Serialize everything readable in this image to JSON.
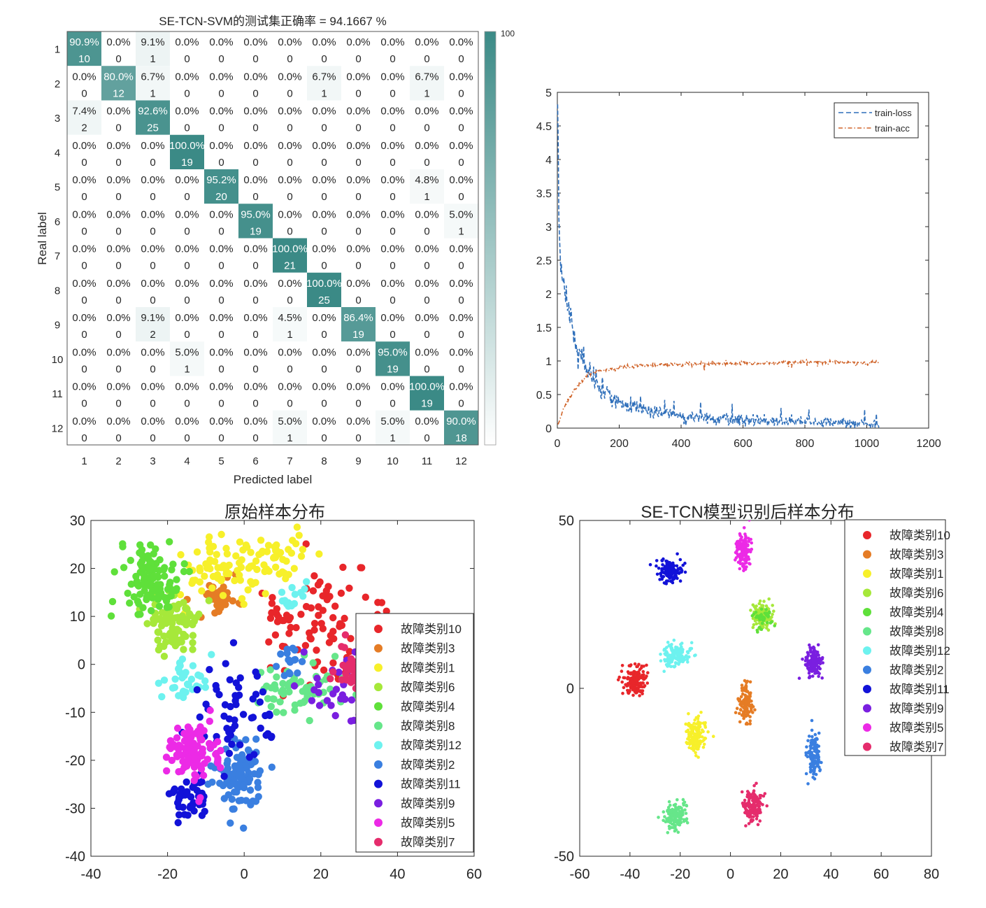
{
  "colors": {
    "cm_cell": "#3b8a86",
    "loss": "#2f6fba",
    "acc": "#d0642a",
    "classes": {
      "故障类别10": "#e8262a",
      "故障类别3": "#e57c25",
      "故障类别1": "#f7f02a",
      "故障类别6": "#a6e83a",
      "故障类别4": "#5fe03a",
      "故障类别8": "#66e68a",
      "故障类别12": "#6df2ef",
      "故障类别2": "#3a7fe0",
      "故障类别11": "#1212d8",
      "故障类别9": "#7a1fe0",
      "故障类别5": "#ec2ae6",
      "故障类别7": "#e52c6c"
    }
  },
  "chart_data": [
    {
      "type": "heatmap",
      "title": "SE-TCN-SVM的测试集正确率 = 94.1667 %",
      "xlabel": "Predicted label",
      "ylabel": "Real label",
      "labels": [
        "1",
        "2",
        "3",
        "4",
        "5",
        "6",
        "7",
        "8",
        "9",
        "10",
        "11",
        "12"
      ],
      "colorbar_label": "100",
      "counts": [
        [
          10,
          0,
          1,
          0,
          0,
          0,
          0,
          0,
          0,
          0,
          0,
          0
        ],
        [
          0,
          12,
          1,
          0,
          0,
          0,
          0,
          1,
          0,
          0,
          1,
          0
        ],
        [
          2,
          0,
          25,
          0,
          0,
          0,
          0,
          0,
          0,
          0,
          0,
          0
        ],
        [
          0,
          0,
          0,
          19,
          0,
          0,
          0,
          0,
          0,
          0,
          0,
          0
        ],
        [
          0,
          0,
          0,
          0,
          20,
          0,
          0,
          0,
          0,
          0,
          1,
          0
        ],
        [
          0,
          0,
          0,
          0,
          0,
          19,
          0,
          0,
          0,
          0,
          0,
          1
        ],
        [
          0,
          0,
          0,
          0,
          0,
          0,
          21,
          0,
          0,
          0,
          0,
          0
        ],
        [
          0,
          0,
          0,
          0,
          0,
          0,
          0,
          25,
          0,
          0,
          0,
          0
        ],
        [
          0,
          0,
          2,
          0,
          0,
          0,
          1,
          0,
          19,
          0,
          0,
          0
        ],
        [
          0,
          0,
          0,
          1,
          0,
          0,
          0,
          0,
          0,
          19,
          0,
          0
        ],
        [
          0,
          0,
          0,
          0,
          0,
          0,
          0,
          0,
          0,
          0,
          19,
          0
        ],
        [
          0,
          0,
          0,
          0,
          0,
          0,
          1,
          0,
          0,
          1,
          0,
          18
        ]
      ],
      "percent": [
        [
          "90.9%",
          "0.0%",
          "9.1%",
          "0.0%",
          "0.0%",
          "0.0%",
          "0.0%",
          "0.0%",
          "0.0%",
          "0.0%",
          "0.0%",
          "0.0%"
        ],
        [
          "0.0%",
          "80.0%",
          "6.7%",
          "0.0%",
          "0.0%",
          "0.0%",
          "0.0%",
          "6.7%",
          "0.0%",
          "0.0%",
          "6.7%",
          "0.0%"
        ],
        [
          "7.4%",
          "0.0%",
          "92.6%",
          "0.0%",
          "0.0%",
          "0.0%",
          "0.0%",
          "0.0%",
          "0.0%",
          "0.0%",
          "0.0%",
          "0.0%"
        ],
        [
          "0.0%",
          "0.0%",
          "0.0%",
          "100.0%",
          "0.0%",
          "0.0%",
          "0.0%",
          "0.0%",
          "0.0%",
          "0.0%",
          "0.0%",
          "0.0%"
        ],
        [
          "0.0%",
          "0.0%",
          "0.0%",
          "0.0%",
          "95.2%",
          "0.0%",
          "0.0%",
          "0.0%",
          "0.0%",
          "0.0%",
          "4.8%",
          "0.0%"
        ],
        [
          "0.0%",
          "0.0%",
          "0.0%",
          "0.0%",
          "0.0%",
          "95.0%",
          "0.0%",
          "0.0%",
          "0.0%",
          "0.0%",
          "0.0%",
          "5.0%"
        ],
        [
          "0.0%",
          "0.0%",
          "0.0%",
          "0.0%",
          "0.0%",
          "0.0%",
          "100.0%",
          "0.0%",
          "0.0%",
          "0.0%",
          "0.0%",
          "0.0%"
        ],
        [
          "0.0%",
          "0.0%",
          "0.0%",
          "0.0%",
          "0.0%",
          "0.0%",
          "0.0%",
          "100.0%",
          "0.0%",
          "0.0%",
          "0.0%",
          "0.0%"
        ],
        [
          "0.0%",
          "0.0%",
          "9.1%",
          "0.0%",
          "0.0%",
          "0.0%",
          "4.5%",
          "0.0%",
          "86.4%",
          "0.0%",
          "0.0%",
          "0.0%"
        ],
        [
          "0.0%",
          "0.0%",
          "0.0%",
          "5.0%",
          "0.0%",
          "0.0%",
          "0.0%",
          "0.0%",
          "0.0%",
          "95.0%",
          "0.0%",
          "0.0%"
        ],
        [
          "0.0%",
          "0.0%",
          "0.0%",
          "0.0%",
          "0.0%",
          "0.0%",
          "0.0%",
          "0.0%",
          "0.0%",
          "0.0%",
          "100.0%",
          "0.0%"
        ],
        [
          "0.0%",
          "0.0%",
          "0.0%",
          "0.0%",
          "0.0%",
          "0.0%",
          "5.0%",
          "0.0%",
          "0.0%",
          "5.0%",
          "0.0%",
          "90.0%"
        ]
      ]
    },
    {
      "type": "line",
      "title": "",
      "xlim": [
        0,
        1200
      ],
      "ylim": [
        0,
        5
      ],
      "xticks": [
        0,
        200,
        400,
        600,
        800,
        1000,
        1200
      ],
      "yticks": [
        0,
        0.5,
        1,
        1.5,
        2,
        2.5,
        3,
        3.5,
        4,
        4.5,
        5
      ],
      "legend_position": "top-right",
      "series": [
        {
          "name": "train-loss",
          "style": "dashed",
          "x": [
            1,
            5,
            10,
            20,
            30,
            50,
            70,
            90,
            110,
            150,
            200,
            250,
            300,
            400,
            500,
            600,
            700,
            800,
            900,
            1000,
            1040
          ],
          "y": [
            4.7,
            3.2,
            2.4,
            2.1,
            1.9,
            1.5,
            1.1,
            0.9,
            0.75,
            0.55,
            0.4,
            0.32,
            0.25,
            0.18,
            0.15,
            0.12,
            0.1,
            0.09,
            0.08,
            0.07,
            0.06
          ]
        },
        {
          "name": "train-acc",
          "style": "dashdot",
          "x": [
            1,
            10,
            20,
            40,
            60,
            80,
            100,
            130,
            160,
            200,
            250,
            300,
            400,
            500,
            600,
            700,
            800,
            900,
            1000,
            1040
          ],
          "y": [
            0.05,
            0.15,
            0.3,
            0.45,
            0.6,
            0.72,
            0.8,
            0.85,
            0.88,
            0.9,
            0.92,
            0.94,
            0.95,
            0.96,
            0.97,
            0.97,
            0.98,
            0.98,
            0.98,
            0.99
          ]
        }
      ]
    },
    {
      "type": "scatter",
      "title": "原始样本分布",
      "xlim": [
        -40,
        60
      ],
      "ylim": [
        -40,
        30
      ],
      "xticks": [
        -40,
        -20,
        0,
        20,
        40,
        60
      ],
      "yticks": [
        -40,
        -30,
        -20,
        -10,
        0,
        10,
        20,
        30
      ],
      "legend_position": "center-right",
      "legend": [
        "故障类别10",
        "故障类别3",
        "故障类别1",
        "故障类别6",
        "故障类别4",
        "故障类别8",
        "故障类别12",
        "故障类别2",
        "故障类别11",
        "故障类别9",
        "故障类别5",
        "故障类别7"
      ],
      "clusters": [
        {
          "name": "故障类别10",
          "x": 20,
          "y": 8,
          "sx": 8,
          "sy": 6,
          "n": 90
        },
        {
          "name": "故障类别3",
          "x": -6,
          "y": 14,
          "sx": 2,
          "sy": 2,
          "n": 40
        },
        {
          "name": "故障类别1",
          "x": -6,
          "y": 20,
          "sx": 6,
          "sy": 3.5,
          "n": 70
        },
        {
          "name": "故障类别1",
          "x": 8,
          "y": 22,
          "sx": 4,
          "sy": 2.5,
          "n": 40
        },
        {
          "name": "故障类别6",
          "x": -19,
          "y": 8,
          "sx": 3,
          "sy": 3,
          "n": 90
        },
        {
          "name": "故障类别4",
          "x": -24,
          "y": 18,
          "sx": 4,
          "sy": 3.5,
          "n": 110
        },
        {
          "name": "故障类别8",
          "x": 14,
          "y": -5,
          "sx": 6,
          "sy": 2.5,
          "n": 60
        },
        {
          "name": "故障类别12",
          "x": -16,
          "y": -3,
          "sx": 3,
          "sy": 2.5,
          "n": 35
        },
        {
          "name": "故障类别12",
          "x": 13,
          "y": 14,
          "sx": 2,
          "sy": 2,
          "n": 15
        },
        {
          "name": "故障类别2",
          "x": -1,
          "y": -24,
          "sx": 3,
          "sy": 3.5,
          "n": 100
        },
        {
          "name": "故障类别2",
          "x": 12,
          "y": 0,
          "sx": 2,
          "sy": 2,
          "n": 15
        },
        {
          "name": "故障类别11",
          "x": -2,
          "y": -10,
          "sx": 6,
          "sy": 5,
          "n": 60
        },
        {
          "name": "故障类别11",
          "x": -14,
          "y": -28,
          "sx": 2.5,
          "sy": 2,
          "n": 45
        },
        {
          "name": "故障类别9",
          "x": 24,
          "y": -5,
          "sx": 6,
          "sy": 4,
          "n": 30
        },
        {
          "name": "故障类别5",
          "x": -13,
          "y": -18,
          "sx": 3,
          "sy": 3,
          "n": 100
        },
        {
          "name": "故障类别7",
          "x": 28,
          "y": -2,
          "sx": 3,
          "sy": 3,
          "n": 40
        }
      ]
    },
    {
      "type": "scatter",
      "title": "SE-TCN模型识别后样本分布",
      "xlim": [
        -60,
        80
      ],
      "ylim": [
        -50,
        50
      ],
      "xticks": [
        -60,
        -40,
        -20,
        0,
        20,
        40,
        60,
        80
      ],
      "yticks": [
        -50,
        0,
        50
      ],
      "legend_position": "top-right",
      "legend": [
        "故障类别10",
        "故障类别3",
        "故障类别1",
        "故障类别6",
        "故障类别4",
        "故障类别8",
        "故障类别12",
        "故障类别2",
        "故障类别11",
        "故障类别9",
        "故障类别5",
        "故障类别7"
      ],
      "clusters": [
        {
          "name": "故障类别10",
          "x": -38,
          "y": 2,
          "sx": 2.3,
          "sy": 2.3,
          "n": 160
        },
        {
          "name": "故障类别3",
          "x": 6,
          "y": -5,
          "sx": 1.4,
          "sy": 3,
          "n": 120
        },
        {
          "name": "故障类别1",
          "x": -14,
          "y": -14,
          "sx": 2,
          "sy": 2.5,
          "n": 150
        },
        {
          "name": "故障类别6",
          "x": 13,
          "y": 21,
          "sx": 2,
          "sy": 2,
          "n": 130
        },
        {
          "name": "故障类别4",
          "x": 13,
          "y": 21,
          "sx": 2,
          "sy": 2,
          "n": 40
        },
        {
          "name": "故障类别8",
          "x": -22,
          "y": -38,
          "sx": 2.2,
          "sy": 2,
          "n": 150
        },
        {
          "name": "故障类别12",
          "x": -22,
          "y": 10,
          "sx": 3,
          "sy": 1.7,
          "n": 150
        },
        {
          "name": "故障类别2",
          "x": 33,
          "y": -20,
          "sx": 1.3,
          "sy": 3.2,
          "n": 130
        },
        {
          "name": "故障类别11",
          "x": -24,
          "y": 35,
          "sx": 2.5,
          "sy": 1.6,
          "n": 150
        },
        {
          "name": "故障类别9",
          "x": 33,
          "y": 8,
          "sx": 1.7,
          "sy": 2,
          "n": 140
        },
        {
          "name": "故障类别5",
          "x": 5,
          "y": 41,
          "sx": 1.5,
          "sy": 2.5,
          "n": 150
        },
        {
          "name": "故障类别7",
          "x": 9,
          "y": -35,
          "sx": 2.2,
          "sy": 2.2,
          "n": 150
        }
      ]
    }
  ]
}
